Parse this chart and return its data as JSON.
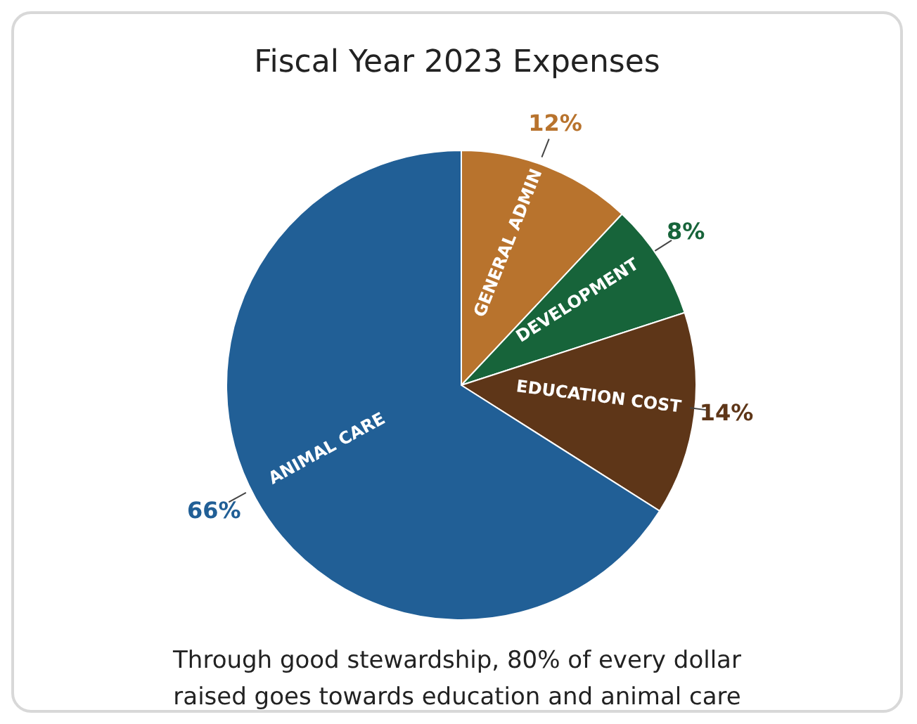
{
  "chart_data": {
    "type": "pie",
    "title": "Fiscal Year 2023 Expenses",
    "categories": [
      "GENERAL ADMIN",
      "DEVELOPMENT",
      "EDUCATION COST",
      "ANIMAL CARE"
    ],
    "values": [
      12,
      8,
      14,
      66
    ],
    "value_labels": [
      "12%",
      "8%",
      "14%",
      "66%"
    ],
    "colors": [
      "#b8732d",
      "#17643a",
      "#5e3618",
      "#215f96"
    ],
    "annotations": [
      "Through good stewardship, 80% of every dollar raised goes towards education and animal care"
    ]
  }
}
